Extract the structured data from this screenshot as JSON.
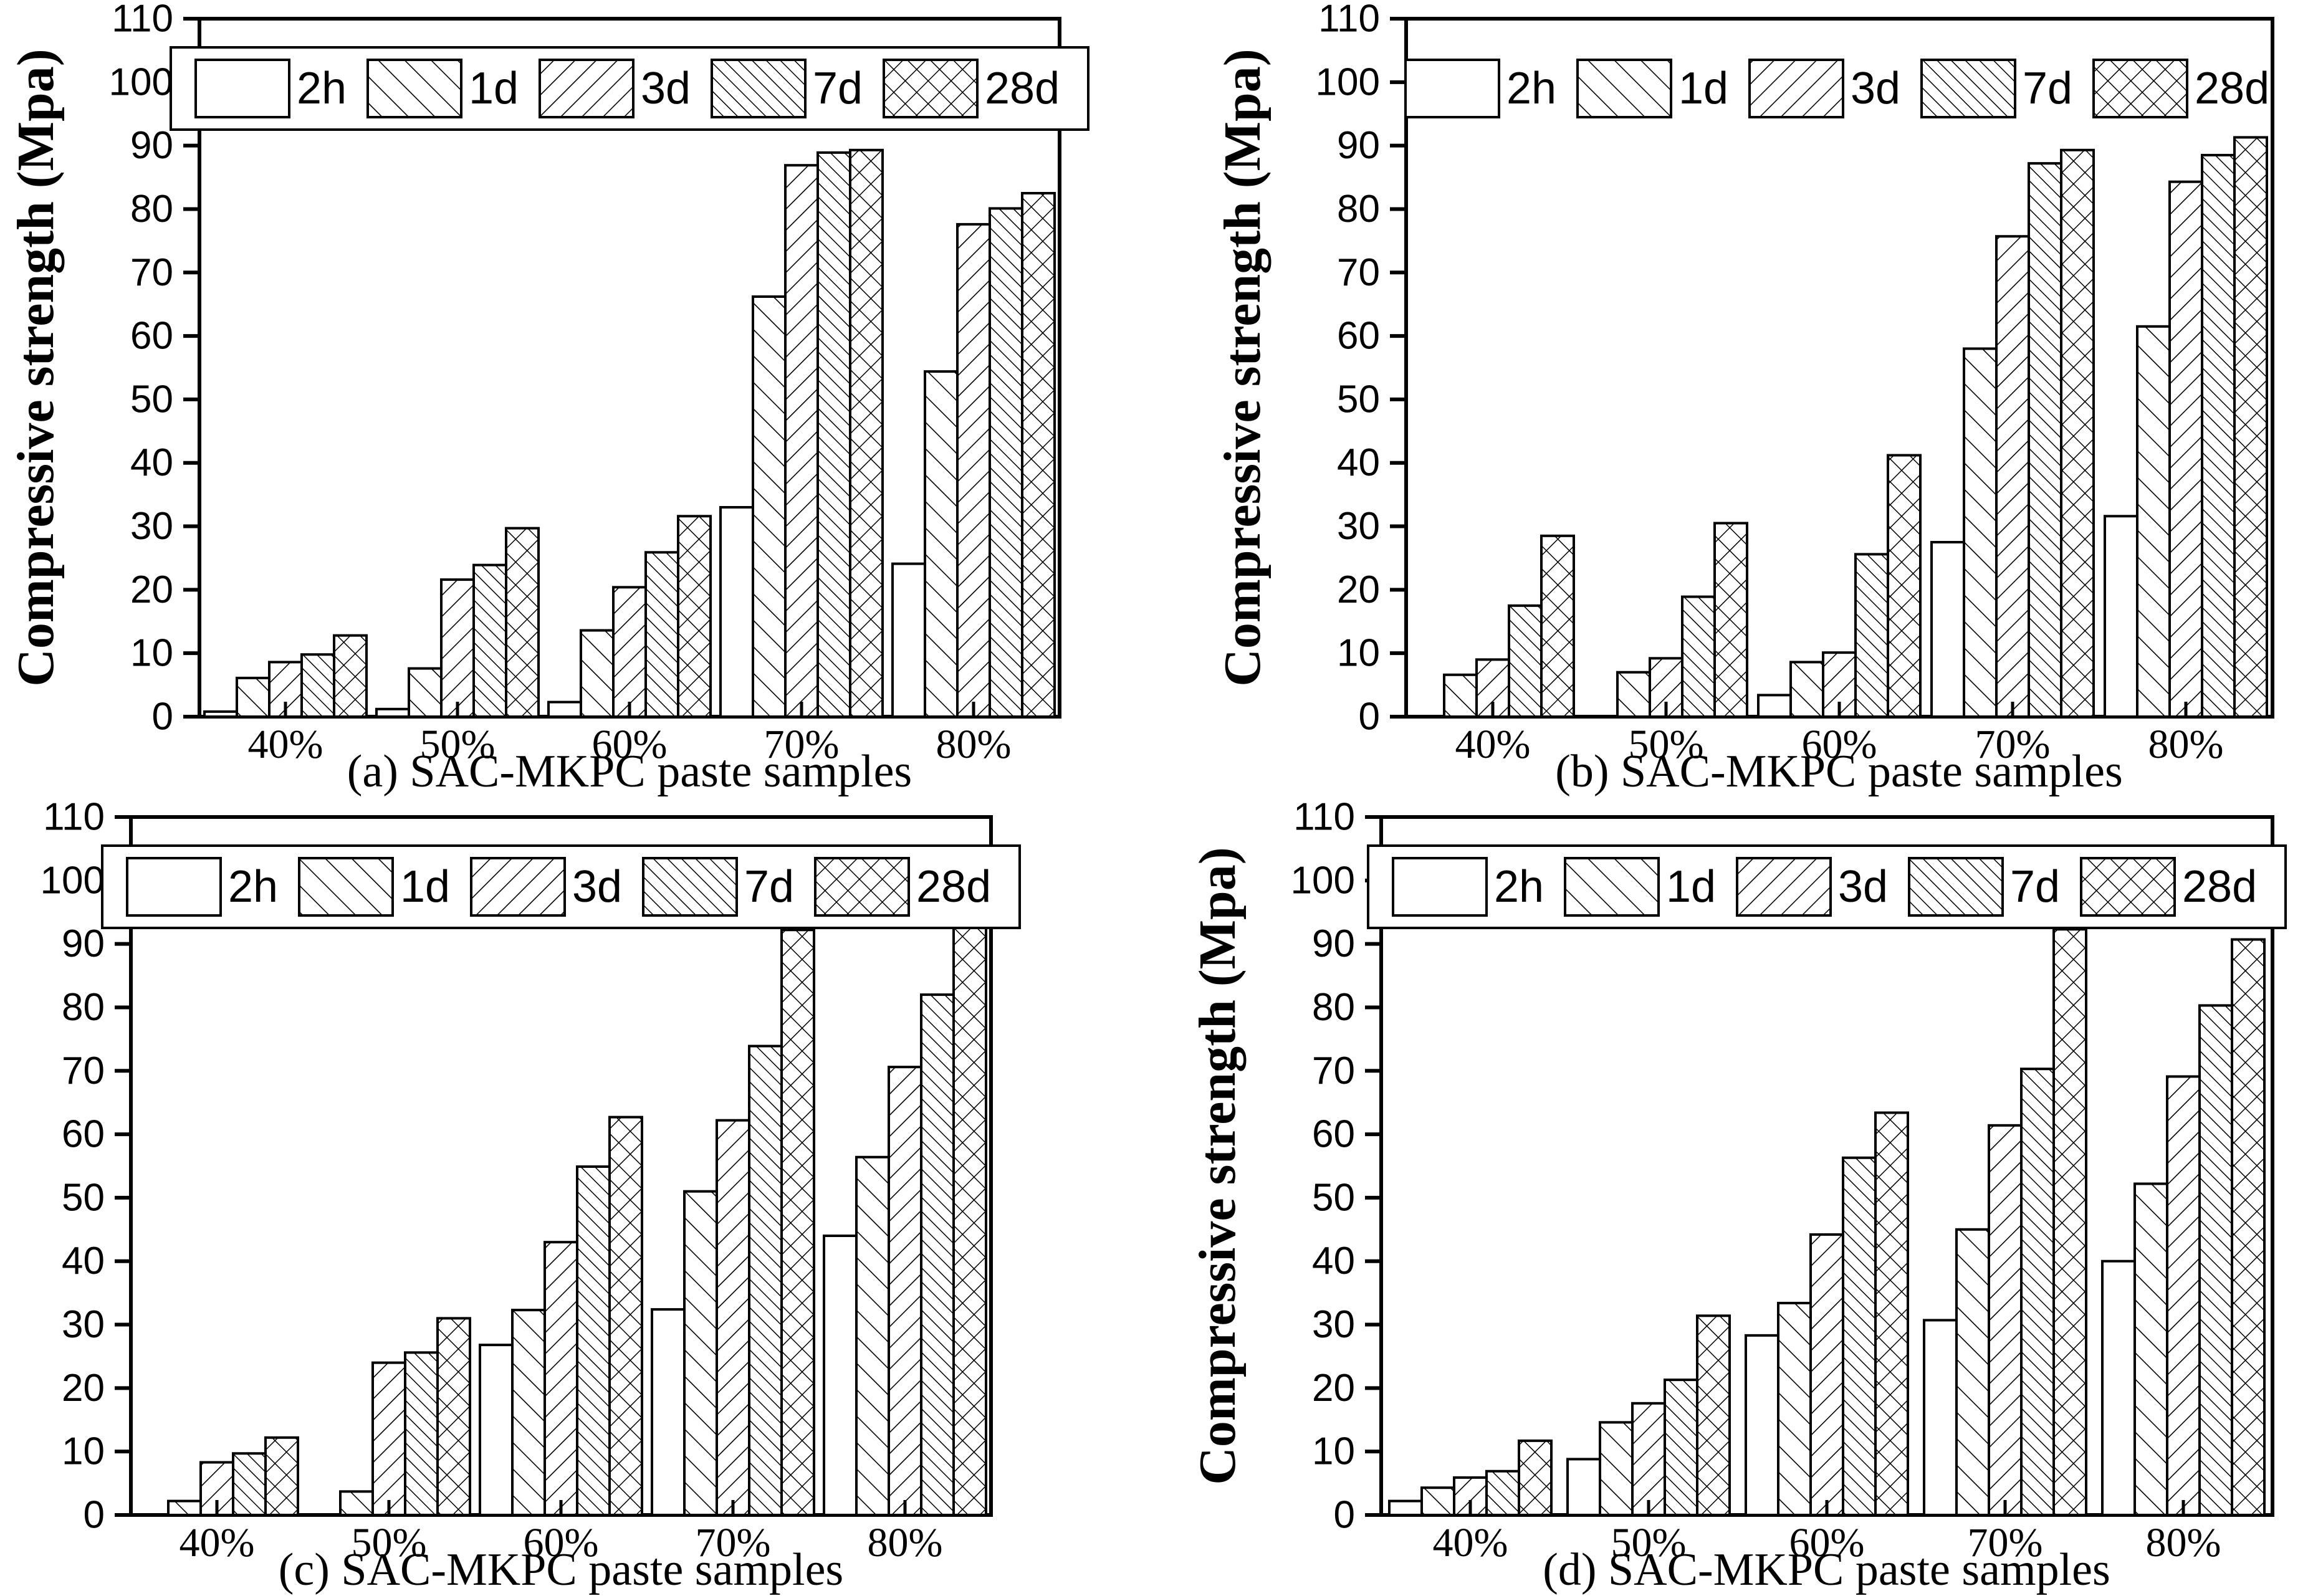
{
  "page": {
    "background": "#ffffff",
    "ink": "#000000"
  },
  "ylabel": "Compressive strength (Mpa)",
  "legend": {
    "labels": [
      "2h",
      "1d",
      "3d",
      "7d",
      "28d"
    ],
    "patterns": [
      "plain",
      "diag-up",
      "diag-down",
      "diag-up-dense",
      "cross"
    ]
  },
  "chart_data": [
    {
      "id": "a",
      "type": "bar",
      "caption": "(a) SAC-MKPC paste samples",
      "ylabel": "Compressive strength (Mpa)",
      "ylim": [
        0,
        110
      ],
      "ytick_step": 10,
      "grid": false,
      "legend_position": "top-inside",
      "legend_box": true,
      "categories": [
        "40%",
        "50%",
        "60%",
        "70%",
        "80%"
      ],
      "series": [
        {
          "name": "2h",
          "values": [
            0.8,
            1.2,
            2.3,
            33.0,
            24.1
          ]
        },
        {
          "name": "1d",
          "values": [
            6.1,
            7.6,
            13.6,
            66.2,
            54.4
          ]
        },
        {
          "name": "3d",
          "values": [
            8.6,
            21.6,
            20.4,
            86.9,
            77.6
          ]
        },
        {
          "name": "7d",
          "values": [
            9.8,
            23.9,
            25.9,
            88.9,
            80.1
          ]
        },
        {
          "name": "28d",
          "values": [
            12.8,
            29.7,
            31.6,
            89.3,
            82.5
          ]
        }
      ]
    },
    {
      "id": "b",
      "type": "bar",
      "caption": "(b) SAC-MKPC paste samples",
      "ylabel": "Compressive strength (Mpa)",
      "ylim": [
        0,
        110
      ],
      "ytick_step": 10,
      "grid": false,
      "legend_position": "top-inside",
      "legend_box": false,
      "categories": [
        "40%",
        "50%",
        "60%",
        "70%",
        "80%"
      ],
      "series": [
        {
          "name": "2h",
          "values": [
            0,
            0,
            3.4,
            27.5,
            31.6
          ]
        },
        {
          "name": "1d",
          "values": [
            6.6,
            7.0,
            8.6,
            58.0,
            61.5
          ]
        },
        {
          "name": "3d",
          "values": [
            9.0,
            9.2,
            10.1,
            75.7,
            84.3
          ]
        },
        {
          "name": "7d",
          "values": [
            17.5,
            18.9,
            25.6,
            87.2,
            88.5
          ]
        },
        {
          "name": "28d",
          "values": [
            28.5,
            30.5,
            41.2,
            89.3,
            91.3
          ]
        }
      ]
    },
    {
      "id": "c",
      "type": "bar",
      "caption": "(c) SAC-MKPC paste samples",
      "ylabel": "Compressive strength (Mpa)",
      "ylim": [
        0,
        110
      ],
      "ytick_step": 10,
      "grid": false,
      "legend_position": "top-inside",
      "legend_box": true,
      "categories": [
        "40%",
        "50%",
        "60%",
        "70%",
        "80%"
      ],
      "series": [
        {
          "name": "2h",
          "values": [
            0,
            0,
            26.8,
            32.4,
            44.0
          ]
        },
        {
          "name": "1d",
          "values": [
            2.2,
            3.7,
            32.3,
            51.0,
            56.4
          ]
        },
        {
          "name": "3d",
          "values": [
            8.3,
            24.0,
            43.0,
            62.2,
            70.6
          ]
        },
        {
          "name": "7d",
          "values": [
            9.7,
            25.6,
            54.9,
            73.9,
            82.0
          ]
        },
        {
          "name": "28d",
          "values": [
            12.2,
            31.0,
            62.7,
            92.2,
            93.4
          ]
        }
      ]
    },
    {
      "id": "d",
      "type": "bar",
      "caption": "(d) SAC-MKPC paste samples",
      "ylabel": "Compressive strength (Mpa)",
      "ylim": [
        0,
        110
      ],
      "ytick_step": 10,
      "grid": false,
      "legend_position": "top-inside",
      "legend_box": true,
      "categories": [
        "40%",
        "50%",
        "60%",
        "70%",
        "80%"
      ],
      "series": [
        {
          "name": "2h",
          "values": [
            2.2,
            8.8,
            28.3,
            30.7,
            40.0
          ]
        },
        {
          "name": "1d",
          "values": [
            4.3,
            14.6,
            33.4,
            45.0,
            52.2
          ]
        },
        {
          "name": "3d",
          "values": [
            5.9,
            17.6,
            44.2,
            61.4,
            69.1
          ]
        },
        {
          "name": "7d",
          "values": [
            6.9,
            21.3,
            56.3,
            70.3,
            80.3
          ]
        },
        {
          "name": "28d",
          "values": [
            11.7,
            31.4,
            63.4,
            92.3,
            90.7
          ]
        }
      ]
    }
  ]
}
